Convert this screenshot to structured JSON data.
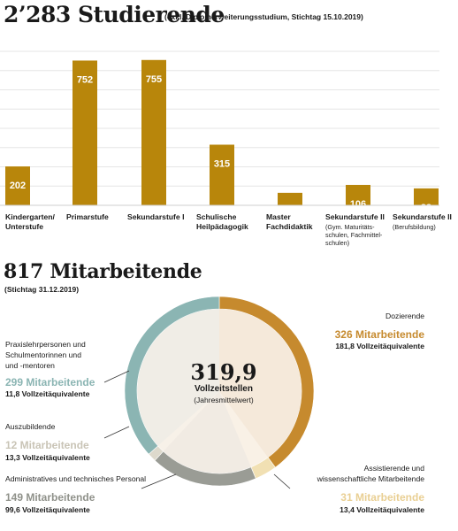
{
  "section1": {
    "title": "2’283 Studierende",
    "subtitle": "(exkl. Diplomerweiterungsstudium, Stichtag 15.10.2019)"
  },
  "chart_data": [
    {
      "type": "bar",
      "title": "2’283 Studierende",
      "subtitle": "(exkl. Diplomerweiterungsstudium, Stichtag 15.10.2019)",
      "categories": [
        "Kindergarten/ Unterstufe",
        "Primarstufe",
        "Sekundarstufe I",
        "Schulische Heilpädagogik",
        "Master Fachdidaktik",
        "Sekundarstufe II",
        "Sekundarstufe II"
      ],
      "category_lines": [
        [
          "Kindergarten/",
          "Unterstufe"
        ],
        [
          "Primarstufe"
        ],
        [
          "Sekundarstufe I"
        ],
        [
          "Schulische",
          "Heilpädagogik"
        ],
        [
          "Master",
          "Fachdidaktik"
        ],
        [
          "Sekundarstufe II"
        ],
        [
          "Sekundarstufe II"
        ]
      ],
      "category_notes": [
        [],
        [],
        [],
        [],
        [],
        [
          "(Gym. Maturitäts-",
          "schulen, Fachmittel-",
          "schulen)"
        ],
        [
          "(Berufsbildung)"
        ]
      ],
      "values": [
        202,
        752,
        755,
        315,
        65,
        106,
        88
      ],
      "value_labels": [
        "202",
        "752",
        "755",
        "315",
        "65",
        "106",
        "88"
      ],
      "ylim": [
        0,
        800
      ],
      "grid": true,
      "bar_color": "#b8860b"
    },
    {
      "type": "pie",
      "donut": true,
      "title": "817 Mitarbeitende",
      "subtitle": "(Stichtag 31.12.2019)",
      "center": {
        "value": "319,9",
        "label": "Vollzeitstellen",
        "note": "(Jahresmittelwert)"
      },
      "slices": [
        {
          "name": "Dozierende",
          "count": 326,
          "count_label": "326 Mitarbeitende",
          "fte": 181.8,
          "fte_label": "181,8 Vollzeitäquivalente",
          "color": "#c68a2e",
          "text_color": "#c68a2e"
        },
        {
          "name": "Assistierende und wissenschaftliche Mitarbeitende",
          "name_lines": [
            "Assistierende und",
            "wissenschaftliche Mitarbeitende"
          ],
          "count": 31,
          "count_label": "31 Mitarbeitende",
          "fte": 13.4,
          "fte_label": "13,4 Vollzeitäquivalente",
          "color": "#f1e0b3",
          "text_color": "#e9cf93"
        },
        {
          "name": "Administratives und technisches Personal",
          "name_lines": [
            "Administratives und technisches Personal"
          ],
          "count": 149,
          "count_label": "149 Mitarbeitende",
          "fte": 99.6,
          "fte_label": "99,6 Vollzeitäquivalente",
          "color": "#9a9c95",
          "text_color": "#8f918a"
        },
        {
          "name": "Auszubildende",
          "name_lines": [
            "Auszubildende"
          ],
          "count": 12,
          "count_label": "12 Mitarbeitende",
          "fte": 13.3,
          "fte_label": "13,3 Vollzeitäquivalente",
          "color": "#ddd9cc",
          "text_color": "#c9c4b6"
        },
        {
          "name": "Praxislehrpersonen und Schulmentorinnen und -mentoren",
          "name_lines": [
            "Praxislehrpersonen und",
            "Schulmentorinnen und",
            "und -mentoren"
          ],
          "count": 299,
          "count_label": "299 Mitarbeitende",
          "fte": 11.8,
          "fte_label": "11,8 Vollzeitäquivalente",
          "color": "#8bb5b3",
          "text_color": "#8bb5b3"
        }
      ]
    }
  ],
  "section2": {
    "title": "817 Mitarbeitende",
    "subtitle": "(Stichtag 31.12.2019)"
  }
}
